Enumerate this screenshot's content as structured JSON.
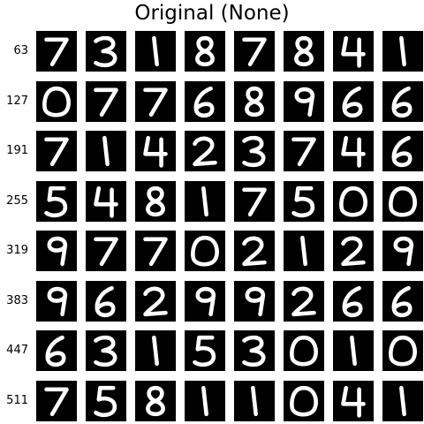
{
  "title": "Original (None)",
  "row_labels": [
    "63",
    "127",
    "191",
    "255",
    "319",
    "383",
    "447",
    "511"
  ],
  "digits": [
    [
      "7",
      "3",
      "1",
      "8",
      "7",
      "8",
      "4",
      "1"
    ],
    [
      "0",
      "7",
      "7",
      "6",
      "8",
      "9",
      "6",
      "6"
    ],
    [
      "7",
      "1",
      "4",
      "2",
      "3",
      "7",
      "4",
      "6"
    ],
    [
      "5",
      "4",
      "8",
      "1",
      "7",
      "5",
      "0",
      "0"
    ],
    [
      "9",
      "7",
      "7",
      "0",
      "2",
      "1",
      "2",
      "9"
    ],
    [
      "9",
      "6",
      "2",
      "9",
      "9",
      "2",
      "6",
      "6"
    ],
    [
      "6",
      "3",
      "1",
      "5",
      "3",
      "0",
      "1",
      "0"
    ],
    [
      "7",
      "5",
      "8",
      "1",
      "1",
      "0",
      "4",
      "1"
    ]
  ],
  "colors": {
    "tile_background": "#000000",
    "stroke": "#ffffff"
  }
}
